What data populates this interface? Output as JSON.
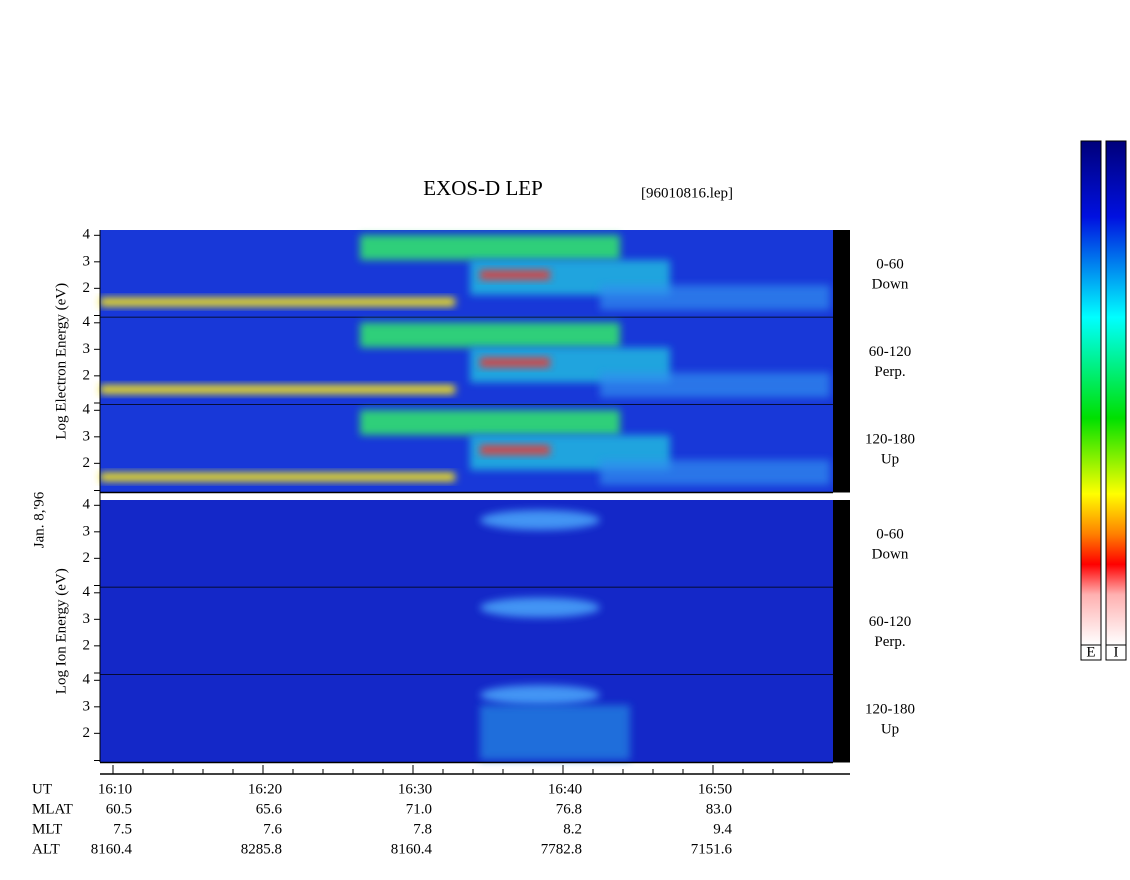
{
  "chart_data": {
    "type": "spectrogram",
    "title": "EXOS-D LEP",
    "file_label": "[96010816.lep]",
    "date_label": "Jan. 8,'96",
    "groups": [
      {
        "axis_label": "Log Electron Energy (eV)",
        "panels": [
          {
            "pitch": "0-60",
            "direction": "Down"
          },
          {
            "pitch": "60-120",
            "direction": "Perp."
          },
          {
            "pitch": "120-180",
            "direction": "Up"
          }
        ]
      },
      {
        "axis_label": "Log Ion Energy (eV)",
        "panels": [
          {
            "pitch": "0-60",
            "direction": "Down"
          },
          {
            "pitch": "60-120",
            "direction": "Perp."
          },
          {
            "pitch": "120-180",
            "direction": "Up"
          }
        ]
      }
    ],
    "ylim": [
      0.9,
      4.2
    ],
    "yticks": [
      2,
      3,
      4
    ],
    "x_row_label": "UT",
    "x": [
      "16:10",
      "16:20",
      "16:30",
      "16:40",
      "16:50"
    ],
    "rows": [
      {
        "name": "MLAT",
        "values": [
          60.5,
          65.6,
          71.0,
          76.8,
          83.0
        ],
        "value_labels": [
          "60.5",
          "65.6",
          "71.0",
          "76.8",
          "83.0"
        ]
      },
      {
        "name": "MLT",
        "values": [
          7.5,
          7.6,
          7.8,
          8.2,
          9.4
        ]
      },
      {
        "name": "ALT",
        "values": [
          8160.4,
          8285.8,
          8160.4,
          7782.8,
          7151.6
        ]
      }
    ],
    "colorbar_labels": [
      "E",
      "I"
    ]
  }
}
